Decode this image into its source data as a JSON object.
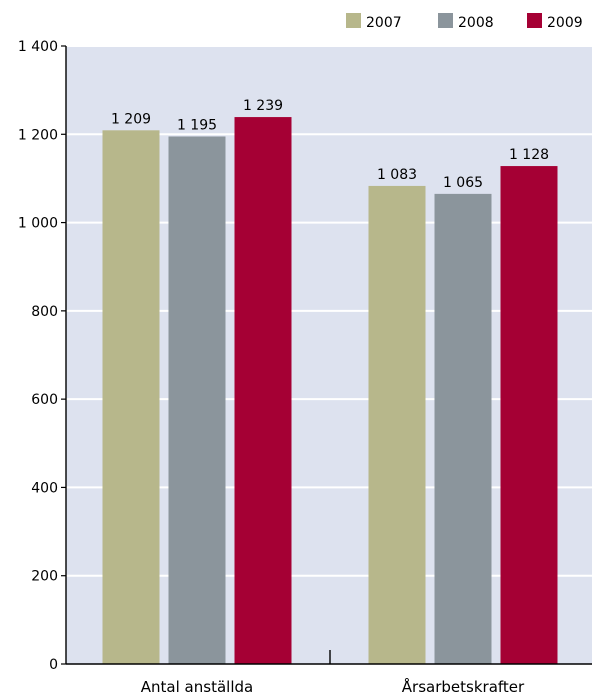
{
  "chart_data": {
    "type": "bar",
    "categories": [
      "Antal anställda",
      "Årsarbetskrafter"
    ],
    "series": [
      {
        "name": "2007",
        "color": "#b7b78b",
        "values": [
          1209,
          1083
        ],
        "labels": [
          "1 209",
          "1 083"
        ]
      },
      {
        "name": "2008",
        "color": "#8b959c",
        "values": [
          1195,
          1065
        ],
        "labels": [
          "1 195",
          "1 065"
        ]
      },
      {
        "name": "2009",
        "color": "#a50034",
        "values": [
          1239,
          1128
        ],
        "labels": [
          "1 239",
          "1 128"
        ]
      }
    ],
    "yticks": [
      {
        "value": 0,
        "label": "0"
      },
      {
        "value": 200,
        "label": "200"
      },
      {
        "value": 400,
        "label": "400"
      },
      {
        "value": 600,
        "label": "600"
      },
      {
        "value": 800,
        "label": "800"
      },
      {
        "value": 1000,
        "label": "1 000"
      },
      {
        "value": 1200,
        "label": "1 200"
      },
      {
        "value": 1400,
        "label": "1 400"
      }
    ],
    "ylim": [
      0,
      1400
    ],
    "grid": true,
    "legend_position": "top-right",
    "plot_background": "#dde2ef",
    "grid_color": "#ffffff"
  }
}
